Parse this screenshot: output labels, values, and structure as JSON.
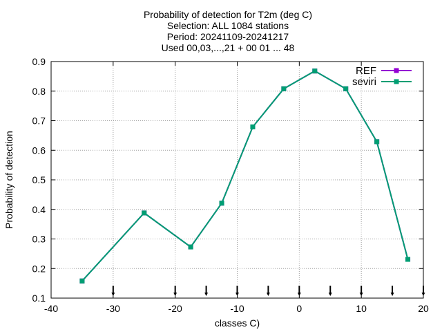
{
  "chart_data": {
    "type": "line",
    "title_lines": [
      "Probability of detection  for T2m (deg C)",
      "Selection: ALL   1084 stations",
      "Period: 20241109-20241217",
      "Used 00,03,...,21 + 00 01 ... 48"
    ],
    "xlabel": "classes C)",
    "ylabel": "Probability of detection",
    "xlim": [
      -40,
      20
    ],
    "ylim": [
      0.1,
      0.9
    ],
    "xticks": [
      -40,
      -30,
      -20,
      -10,
      0,
      10,
      20
    ],
    "yticks": [
      0.1,
      0.2,
      0.3,
      0.4,
      0.5,
      0.6,
      0.7,
      0.8,
      0.9
    ],
    "ytick_labels": [
      "0.1",
      "0.2",
      "0.3",
      "0.4",
      "0.5",
      "0.6",
      "0.7",
      "0.8",
      "0.9"
    ],
    "grid": true,
    "legend_position": "top-right",
    "class_markers": [
      -30,
      -20,
      -15,
      -10,
      -5,
      0,
      5,
      10,
      15,
      20
    ],
    "series": [
      {
        "name": "REF",
        "color": "#9400d3",
        "x": [
          -35,
          -25,
          -17.5,
          -12.5,
          -7.5,
          -2.5,
          2.5,
          7.5,
          12.5,
          17.5
        ],
        "y": [
          0.158,
          0.388,
          0.273,
          0.421,
          0.679,
          0.808,
          0.868,
          0.808,
          0.629,
          0.231
        ]
      },
      {
        "name": "seviri",
        "color": "#009e73",
        "x": [
          -35,
          -25,
          -17.5,
          -12.5,
          -7.5,
          -2.5,
          2.5,
          7.5,
          12.5,
          17.5
        ],
        "y": [
          0.158,
          0.388,
          0.273,
          0.421,
          0.679,
          0.808,
          0.868,
          0.808,
          0.629,
          0.231
        ]
      }
    ]
  }
}
